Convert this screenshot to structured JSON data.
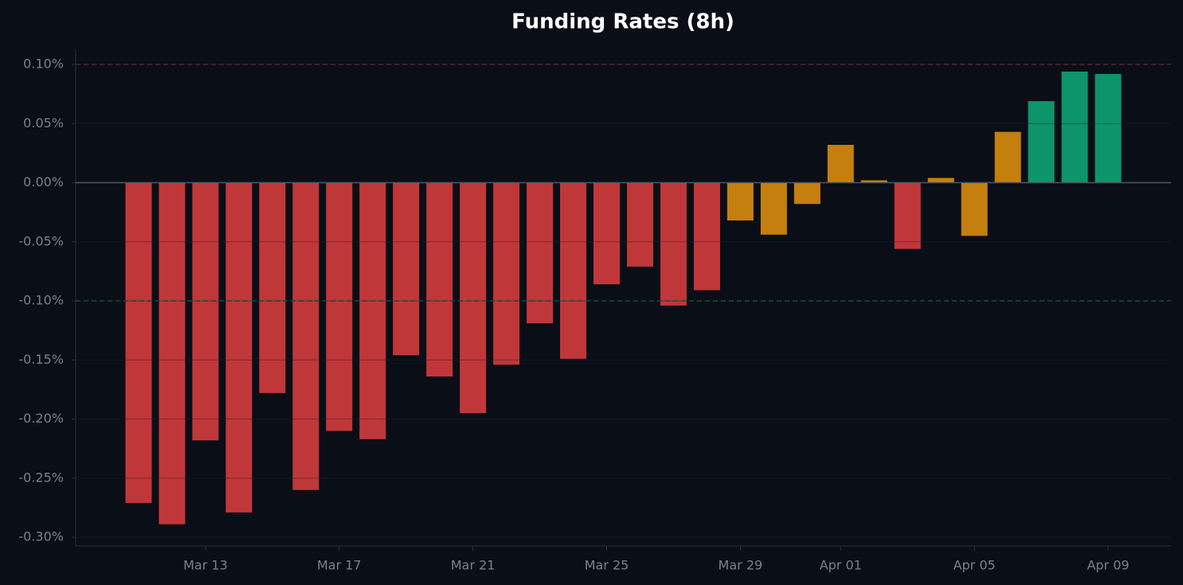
{
  "chart_data": {
    "type": "bar",
    "title": "Funding Rates (8h)",
    "categories": [
      null,
      null,
      "Mar 13",
      null,
      null,
      null,
      "Mar 17",
      null,
      null,
      null,
      "Mar 21",
      null,
      null,
      null,
      "Mar 25",
      null,
      null,
      null,
      "Mar 29",
      null,
      null,
      "Apr 01",
      null,
      null,
      null,
      "Apr 05",
      null,
      null,
      null,
      "Apr 09"
    ],
    "values": [
      -0.271,
      -0.289,
      -0.218,
      -0.279,
      -0.178,
      -0.26,
      -0.21,
      -0.217,
      -0.146,
      -0.164,
      -0.195,
      -0.154,
      -0.119,
      -0.149,
      -0.086,
      -0.071,
      -0.104,
      -0.091,
      -0.032,
      -0.044,
      -0.018,
      0.032,
      0.002,
      -0.056,
      0.004,
      -0.045,
      0.043,
      0.069,
      0.094,
      0.092
    ],
    "colors": [
      "#c0373a",
      "#c0373a",
      "#c0373a",
      "#c0373a",
      "#c0373a",
      "#c0373a",
      "#c0373a",
      "#c0373a",
      "#c0373a",
      "#c0373a",
      "#c0373a",
      "#c0373a",
      "#c0373a",
      "#c0373a",
      "#c0373a",
      "#c0373a",
      "#c0373a",
      "#c0373a",
      "#c47f0e",
      "#c47f0e",
      "#c47f0e",
      "#c47f0e",
      "#c47f0e",
      "#c0373a",
      "#c47f0e",
      "#c47f0e",
      "#c47f0e",
      "#0e946a",
      "#0e946a",
      "#0e946a"
    ],
    "ylim": [
      -0.3074,
      0.1128
    ],
    "yticks": [
      {
        "value": -0.3,
        "label": "-0.30%"
      },
      {
        "value": -0.25,
        "label": "-0.25%"
      },
      {
        "value": -0.2,
        "label": "-0.20%"
      },
      {
        "value": -0.15,
        "label": "-0.15%"
      },
      {
        "value": -0.1,
        "label": "-0.10%"
      },
      {
        "value": -0.05,
        "label": "-0.05%"
      },
      {
        "value": 0,
        "label": "0.00%"
      },
      {
        "value": 0.05,
        "label": "0.05%"
      },
      {
        "value": 0.1,
        "label": "0.10%"
      }
    ],
    "grid": true,
    "hlines": [
      {
        "value": 0.1,
        "color": "#6a2a30"
      },
      {
        "value": -0.1,
        "color": "#1d5a58"
      },
      {
        "value": 0,
        "color": "#6b7079"
      }
    ]
  }
}
